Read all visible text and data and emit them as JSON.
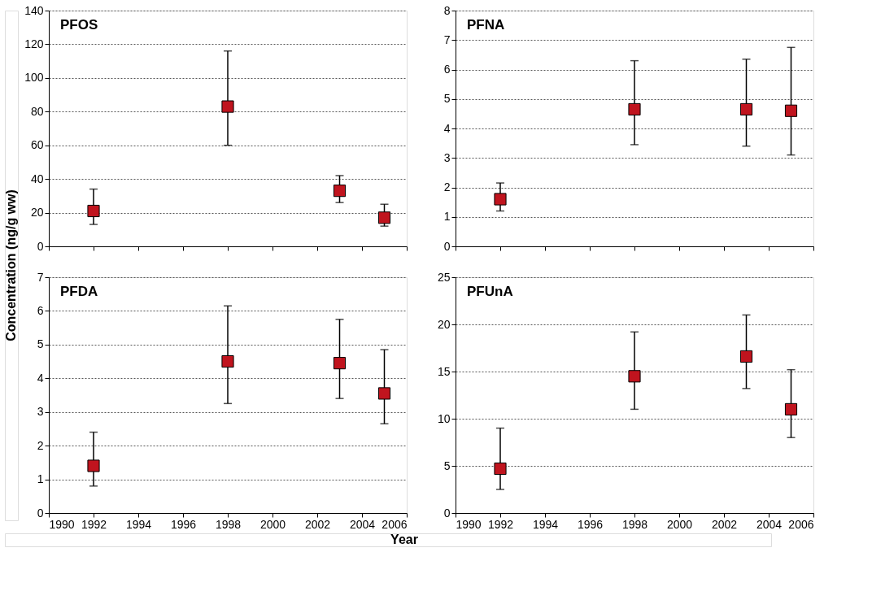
{
  "chart_data": [
    {
      "type": "scatter",
      "title": "PFOS",
      "ylabel": "Concentration (ng/g ww)",
      "x": [
        1992,
        1998,
        2003,
        2005
      ],
      "series": [
        {
          "color": "#c0141e",
          "values": [
            21,
            83,
            33,
            17
          ],
          "errors": [
            [
              13,
              34
            ],
            [
              60,
              116
            ],
            [
              26,
              42
            ],
            [
              12,
              25
            ]
          ]
        }
      ],
      "xlim": [
        1990,
        2006
      ],
      "xticks": [
        1990,
        1992,
        1994,
        1996,
        1998,
        2000,
        2002,
        2004,
        2006
      ],
      "ylim": [
        0,
        140
      ],
      "yticks": [
        0,
        20,
        40,
        60,
        80,
        100,
        120,
        140
      ],
      "grid": "y",
      "marker": "square",
      "tick_labels": "y"
    },
    {
      "type": "scatter",
      "title": "PFNA",
      "x": [
        1992,
        1998,
        2003,
        2005
      ],
      "series": [
        {
          "color": "#c0141e",
          "values": [
            1.6,
            4.65,
            4.65,
            4.6
          ],
          "errors": [
            [
              1.2,
              2.15
            ],
            [
              3.45,
              6.3
            ],
            [
              3.4,
              6.35
            ],
            [
              3.1,
              6.75
            ]
          ]
        }
      ],
      "xlim": [
        1990,
        2006
      ],
      "xticks": [
        1990,
        1992,
        1994,
        1996,
        1998,
        2000,
        2002,
        2004,
        2006
      ],
      "ylim": [
        0,
        8
      ],
      "yticks": [
        0,
        1,
        2,
        3,
        4,
        5,
        6,
        7,
        8
      ],
      "grid": "y",
      "marker": "square",
      "tick_labels": "y"
    },
    {
      "type": "scatter",
      "title": "PFDA",
      "xlabel": "Year",
      "x": [
        1992,
        1998,
        2003,
        2005
      ],
      "series": [
        {
          "color": "#c0141e",
          "values": [
            1.4,
            4.5,
            4.45,
            3.55
          ],
          "errors": [
            [
              0.8,
              2.4
            ],
            [
              3.25,
              6.15
            ],
            [
              3.4,
              5.75
            ],
            [
              2.65,
              4.85
            ]
          ]
        }
      ],
      "xlim": [
        1990,
        2006
      ],
      "xticks": [
        1990,
        1992,
        1994,
        1996,
        1998,
        2000,
        2002,
        2004,
        2006
      ],
      "ylim": [
        0,
        7
      ],
      "yticks": [
        0,
        1,
        2,
        3,
        4,
        5,
        6,
        7
      ],
      "grid": "y",
      "marker": "square"
    },
    {
      "type": "scatter",
      "title": "PFUnA",
      "x": [
        1992,
        1998,
        2003,
        2005
      ],
      "series": [
        {
          "color": "#c0141e",
          "values": [
            4.7,
            14.5,
            16.6,
            11
          ],
          "errors": [
            [
              2.5,
              9
            ],
            [
              11,
              19.2
            ],
            [
              13.2,
              21
            ],
            [
              8,
              15.2
            ]
          ]
        }
      ],
      "xlim": [
        1990,
        2006
      ],
      "xticks": [
        1990,
        1992,
        1994,
        1996,
        1998,
        2000,
        2002,
        2004,
        2006
      ],
      "ylim": [
        0,
        25
      ],
      "yticks": [
        0,
        5,
        10,
        15,
        20,
        25
      ],
      "grid": "y",
      "marker": "square"
    }
  ]
}
